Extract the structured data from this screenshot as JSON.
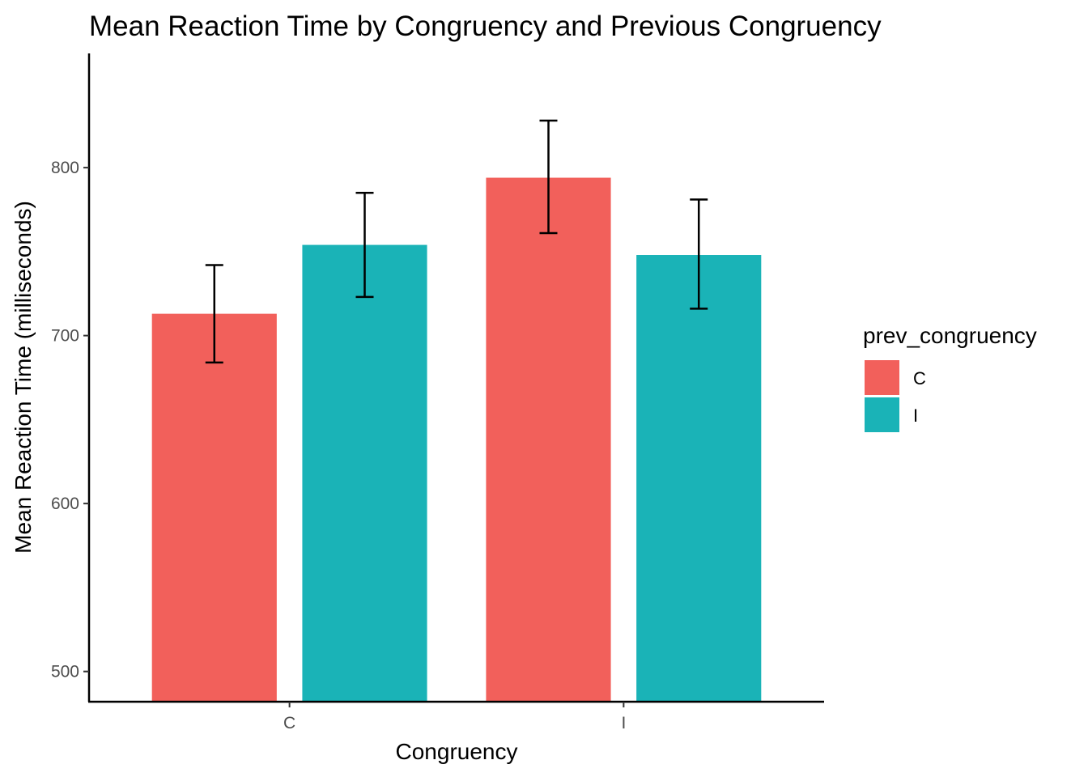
{
  "chart_data": {
    "type": "bar",
    "title": "Mean Reaction Time by Congruency and Previous Congruency",
    "xlabel": "Congruency",
    "ylabel": "Mean Reaction Time (milliseconds)",
    "categories": [
      "C",
      "I"
    ],
    "yticks": [
      500,
      600,
      700,
      800
    ],
    "ylim": [
      482,
      868
    ],
    "grid": false,
    "legend": {
      "title": "prev_congruency",
      "placement": "right"
    },
    "series": [
      {
        "name": "C",
        "color": "#F2605B",
        "values": [
          713,
          794
        ],
        "error_low": [
          684,
          761
        ],
        "error_high": [
          742,
          828
        ]
      },
      {
        "name": "I",
        "color": "#1AB3B7",
        "values": [
          754,
          748
        ],
        "error_low": [
          723,
          716
        ],
        "error_high": [
          785,
          781
        ]
      }
    ]
  }
}
